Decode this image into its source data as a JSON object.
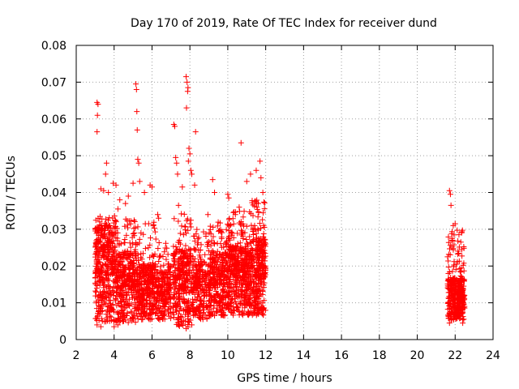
{
  "chart_data": {
    "type": "scatter",
    "title": "Day 170 of 2019, Rate Of TEC Index for receiver dund",
    "xlabel": "GPS time / hours",
    "ylabel": "ROTI / TECUs",
    "xlim": [
      2,
      24
    ],
    "ylim": [
      0,
      0.08
    ],
    "xticks": [
      2,
      4,
      6,
      8,
      10,
      12,
      14,
      16,
      18,
      20,
      22,
      24
    ],
    "yticks": [
      0,
      0.01,
      0.02,
      0.03,
      0.04,
      0.05,
      0.06,
      0.07,
      0.08
    ],
    "xtick_labels": [
      "2",
      "4",
      "6",
      "8",
      "10",
      "12",
      "14",
      "16",
      "18",
      "20",
      "22",
      "24"
    ],
    "ytick_labels": [
      "0",
      "0.01",
      "0.02",
      "0.03",
      "0.04",
      "0.05",
      "0.06",
      "0.07",
      "0.08"
    ],
    "grid": true,
    "marker": "+",
    "color": "#ff0000",
    "series": [
      {
        "name": "ROTI",
        "points": [
          [
            3.1,
            0.0645
          ],
          [
            3.15,
            0.064
          ],
          [
            3.12,
            0.061
          ],
          [
            3.1,
            0.0565
          ],
          [
            3.3,
            0.041
          ],
          [
            3.45,
            0.0405
          ],
          [
            3.55,
            0.045
          ],
          [
            3.6,
            0.048
          ],
          [
            3.7,
            0.04
          ],
          [
            3.95,
            0.0425
          ],
          [
            4.1,
            0.042
          ],
          [
            4.2,
            0.0355
          ],
          [
            4.3,
            0.038
          ],
          [
            4.6,
            0.037
          ],
          [
            4.75,
            0.039
          ],
          [
            5.0,
            0.0425
          ],
          [
            5.15,
            0.0695
          ],
          [
            5.18,
            0.068
          ],
          [
            5.2,
            0.062
          ],
          [
            5.22,
            0.057
          ],
          [
            5.25,
            0.049
          ],
          [
            5.3,
            0.048
          ],
          [
            5.35,
            0.043
          ],
          [
            5.6,
            0.04
          ],
          [
            5.9,
            0.042
          ],
          [
            6.0,
            0.0415
          ],
          [
            6.3,
            0.034
          ],
          [
            6.35,
            0.033
          ],
          [
            7.15,
            0.0585
          ],
          [
            7.2,
            0.058
          ],
          [
            7.25,
            0.0495
          ],
          [
            7.3,
            0.048
          ],
          [
            7.35,
            0.045
          ],
          [
            7.4,
            0.0365
          ],
          [
            7.6,
            0.0415
          ],
          [
            7.8,
            0.0715
          ],
          [
            7.85,
            0.07
          ],
          [
            7.9,
            0.0685
          ],
          [
            7.88,
            0.0675
          ],
          [
            7.82,
            0.063
          ],
          [
            7.95,
            0.052
          ],
          [
            8.0,
            0.0505
          ],
          [
            7.92,
            0.0485
          ],
          [
            8.05,
            0.046
          ],
          [
            8.1,
            0.045
          ],
          [
            8.3,
            0.0565
          ],
          [
            8.25,
            0.042
          ],
          [
            8.95,
            0.034
          ],
          [
            9.2,
            0.0435
          ],
          [
            9.3,
            0.04
          ],
          [
            10.0,
            0.0395
          ],
          [
            10.05,
            0.0385
          ],
          [
            10.4,
            0.034
          ],
          [
            10.6,
            0.036
          ],
          [
            10.7,
            0.0535
          ],
          [
            11.0,
            0.043
          ],
          [
            11.2,
            0.045
          ],
          [
            11.5,
            0.046
          ],
          [
            11.7,
            0.0485
          ],
          [
            11.75,
            0.044
          ],
          [
            11.85,
            0.04
          ],
          [
            21.7,
            0.0405
          ],
          [
            21.75,
            0.0395
          ],
          [
            21.78,
            0.0365
          ],
          [
            21.9,
            0.031
          ],
          [
            22.0,
            0.0315
          ],
          [
            22.2,
            0.0285
          ],
          [
            22.3,
            0.0265
          ],
          [
            22.35,
            0.0245
          ],
          [
            3.1,
            0.004
          ],
          [
            3.3,
            0.0035
          ],
          [
            4.0,
            0.0035
          ],
          [
            4.2,
            0.004
          ],
          [
            7.8,
            0.003
          ],
          [
            7.9,
            0.0035
          ],
          [
            8.1,
            0.004
          ],
          [
            21.7,
            0.0045
          ],
          [
            22.4,
            0.0045
          ]
        ]
      }
    ],
    "clusters": [
      {
        "x": [
          3.0,
          4.1
        ],
        "ymin": 0.004,
        "ymax": 0.034,
        "core": 0.018,
        "count": 420
      },
      {
        "x": [
          4.1,
          5.2
        ],
        "ymin": 0.004,
        "ymax": 0.033,
        "core": 0.014,
        "count": 360
      },
      {
        "x": [
          5.2,
          6.2
        ],
        "ymin": 0.005,
        "ymax": 0.032,
        "core": 0.013,
        "count": 330
      },
      {
        "x": [
          6.2,
          7.0
        ],
        "ymin": 0.005,
        "ymax": 0.028,
        "core": 0.012,
        "count": 220
      },
      {
        "x": [
          7.1,
          8.1
        ],
        "ymin": 0.003,
        "ymax": 0.035,
        "core": 0.014,
        "count": 330
      },
      {
        "x": [
          8.1,
          9.0
        ],
        "ymin": 0.005,
        "ymax": 0.03,
        "core": 0.013,
        "count": 240
      },
      {
        "x": [
          9.0,
          10.0
        ],
        "ymin": 0.006,
        "ymax": 0.032,
        "core": 0.015,
        "count": 320
      },
      {
        "x": [
          10.0,
          11.0
        ],
        "ymin": 0.006,
        "ymax": 0.035,
        "core": 0.016,
        "count": 380
      },
      {
        "x": [
          11.0,
          12.0
        ],
        "ymin": 0.006,
        "ymax": 0.038,
        "core": 0.017,
        "count": 420
      },
      {
        "x": [
          21.6,
          22.5
        ],
        "ymin": 0.005,
        "ymax": 0.03,
        "core": 0.011,
        "count": 360
      }
    ]
  }
}
